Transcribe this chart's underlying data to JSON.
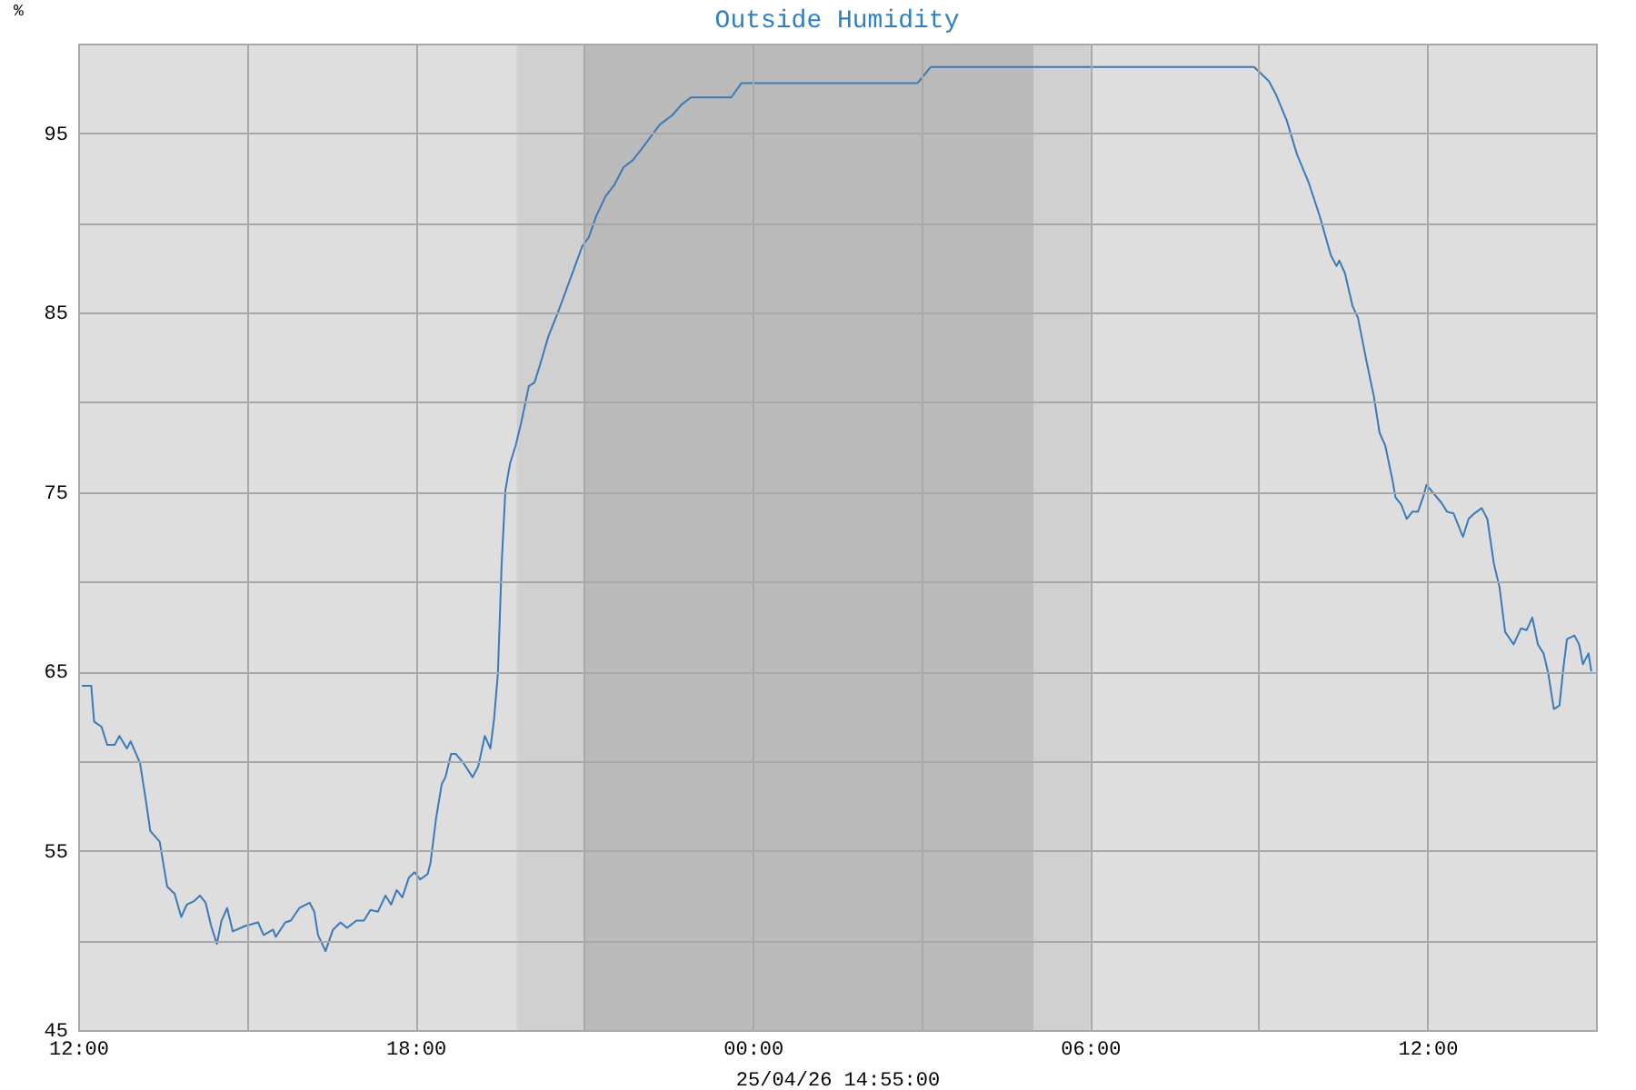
{
  "chart_data": {
    "type": "line",
    "title": "Outside Humidity",
    "xlabel": "25/04/26 14:55:00",
    "ylabel": "%",
    "x": [
      "--04-25T12:04",
      "--04-25T12:14",
      "--04-25T12:17",
      "--04-25T12:25",
      "--04-25T12:31",
      "--04-25T12:39",
      "--04-25T12:44",
      "--04-25T12:52",
      "--04-25T12:56",
      "--04-25T13:06",
      "--04-25T13:12",
      "--04-25T13:17",
      "--04-25T13:27",
      "--04-25T13:35",
      "--04-25T13:43",
      "--04-25T13:50",
      "--04-25T13:56",
      "--04-25T14:04",
      "--04-25T14:10",
      "--04-25T14:16",
      "--04-25T14:22",
      "--04-25T14:28",
      "--04-25T14:33",
      "--04-25T14:39",
      "--04-25T14:45",
      "--04-25T14:58",
      "--04-25T15:12",
      "--04-25T15:18",
      "--04-25T15:28",
      "--04-25T15:31",
      "--04-25T15:41",
      "--04-25T15:47",
      "--04-25T15:56",
      "--04-25T16:07",
      "--04-25T16:12",
      "--04-25T16:16",
      "--04-25T16:24",
      "--04-25T16:32",
      "--04-25T16:40",
      "--04-25T16:47",
      "--04-25T16:57",
      "--04-25T17:05",
      "--04-25T17:12",
      "--04-25T17:20",
      "--04-25T17:28",
      "--04-25T17:34",
      "--04-25T17:40",
      "--04-25T17:46",
      "--04-25T17:53",
      "--04-25T17:59",
      "--04-25T18:05",
      "--04-25T18:13",
      "--04-25T18:16",
      "--04-25T18:22",
      "--04-25T18:28",
      "--04-25T18:32",
      "--04-25T18:38",
      "--04-25T18:43",
      "--04-25T18:51",
      "--04-25T19:01",
      "--04-25T19:07",
      "--04-25T19:14",
      "--04-25T19:20",
      "--04-25T19:24",
      "--04-25T19:28",
      "--04-25T19:32",
      "--04-25T19:36",
      "--04-25T19:41",
      "--04-25T19:47",
      "--04-25T19:53",
      "--04-25T20:01",
      "--04-25T20:07",
      "--04-25T20:13",
      "--04-25T20:22",
      "--04-25T20:32",
      "--04-25T20:44",
      "--04-25T20:58",
      "--04-25T21:05",
      "--04-25T21:13",
      "--04-25T21:23",
      "--04-25T21:32",
      "--04-25T21:42",
      "--04-25T21:52",
      "--04-25T22:01",
      "--04-25T22:11",
      "--04-25T22:21",
      "--04-25T22:34",
      "--04-25T22:44",
      "--04-25T22:54",
      "--04-25T23:37",
      "--04-25T23:48",
      "--04-26T02:56",
      "--04-26T03:10",
      "--04-26T08:55",
      "--04-26T09:03",
      "--04-26T09:11",
      "--04-26T09:19",
      "--04-26T09:30",
      "--04-26T09:41",
      "--04-26T09:53",
      "--04-26T10:05",
      "--04-26T10:17",
      "--04-26T10:23",
      "--04-26T10:26",
      "--04-26T10:32",
      "--04-26T10:40",
      "--04-26T10:46",
      "--04-26T10:55",
      "--04-26T11:03",
      "--04-26T11:09",
      "--04-26T11:15",
      "--04-26T11:23",
      "--04-26T11:26",
      "--04-26T11:32",
      "--04-26T11:38",
      "--04-26T11:44",
      "--04-26T11:50",
      "--04-26T11:56",
      "--04-26T11:59",
      "--04-26T12:07",
      "--04-26T12:15",
      "--04-26T12:21",
      "--04-26T12:28",
      "--04-26T12:38",
      "--04-26T12:44",
      "--04-26T12:50",
      "--04-26T12:58",
      "--04-26T13:04",
      "--04-26T13:11",
      "--04-26T13:17",
      "--04-26T13:23",
      "--04-26T13:32",
      "--04-26T13:40",
      "--04-26T13:46",
      "--04-26T13:52",
      "--04-26T13:58",
      "--04-26T14:04",
      "--04-26T14:09",
      "--04-26T14:15",
      "--04-26T14:21",
      "--04-26T14:25",
      "--04-26T14:29",
      "--04-26T14:37",
      "--04-26T14:42",
      "--04-26T14:46",
      "--04-26T14:52",
      "--04-26T14:55"
    ],
    "series": [
      {
        "color": "#3a7ab8",
        "values": [
          64.2,
          64.2,
          62.2,
          61.9,
          60.9,
          60.9,
          61.4,
          60.7,
          61.1,
          59.9,
          57.9,
          56.1,
          55.5,
          53.0,
          52.6,
          51.3,
          52.0,
          52.2,
          52.5,
          52.1,
          50.8,
          49.8,
          51.1,
          51.8,
          50.5,
          50.8,
          51.0,
          50.3,
          50.6,
          50.2,
          51.0,
          51.1,
          51.8,
          52.1,
          51.6,
          50.3,
          49.4,
          50.6,
          51.0,
          50.7,
          51.1,
          51.1,
          51.7,
          51.6,
          52.5,
          52.0,
          52.8,
          52.4,
          53.5,
          53.8,
          53.4,
          53.7,
          54.3,
          56.8,
          58.7,
          59.1,
          60.4,
          60.4,
          59.9,
          59.1,
          59.7,
          61.4,
          60.7,
          62.4,
          64.9,
          71.0,
          75.1,
          76.6,
          77.6,
          78.9,
          80.9,
          81.1,
          82.1,
          83.7,
          85.0,
          86.7,
          88.7,
          89.2,
          90.4,
          91.5,
          92.1,
          93.1,
          93.5,
          94.1,
          94.8,
          95.5,
          96.0,
          96.6,
          97.0,
          97.0,
          97.8,
          97.8,
          98.7,
          98.7,
          98.3,
          97.9,
          97.1,
          95.7,
          93.8,
          92.3,
          90.4,
          88.2,
          87.6,
          87.9,
          87.2,
          85.4,
          84.7,
          82.3,
          80.3,
          78.3,
          77.6,
          75.6,
          74.7,
          74.3,
          73.5,
          73.9,
          73.9,
          74.8,
          75.4,
          74.9,
          74.4,
          73.9,
          73.8,
          72.5,
          73.5,
          73.8,
          74.1,
          73.5,
          71.0,
          69.7,
          67.2,
          66.5,
          67.4,
          67.3,
          68.0,
          66.5,
          66.0,
          64.9,
          62.9,
          63.1,
          65.1,
          66.8,
          67.0,
          66.5,
          65.4,
          66.0,
          65.0
        ]
      }
    ],
    "xlim": [
      "--04-25T12:00",
      "--04-26T15:00"
    ],
    "xticks": [
      {
        "value": "--04-25T12:00",
        "label": "12:00"
      },
      {
        "value": "--04-25T15:00",
        "label": null
      },
      {
        "value": "--04-25T18:00",
        "label": "18:00"
      },
      {
        "value": "--04-25T21:00",
        "label": null
      },
      {
        "value": "--04-26T00:00",
        "label": "00:00"
      },
      {
        "value": "--04-26T03:00",
        "label": null
      },
      {
        "value": "--04-26T06:00",
        "label": "06:00"
      },
      {
        "value": "--04-26T09:00",
        "label": null
      },
      {
        "value": "--04-26T12:00",
        "label": "12:00"
      },
      {
        "value": "--04-26T15:00",
        "label": null
      }
    ],
    "ylim": [
      45,
      100
    ],
    "yticks": [
      45,
      {
        "value": 50,
        "label": null
      },
      55,
      {
        "value": 60,
        "label": null
      },
      65,
      {
        "value": 70,
        "label": null
      },
      75,
      {
        "value": 80,
        "label": null
      },
      85,
      {
        "value": 90,
        "label": null
      },
      95,
      {
        "value": 100,
        "label": null
      }
    ],
    "bands": [
      {
        "axis": "x",
        "from": "--04-25T19:48",
        "to": "--04-25T21:00",
        "color": "#d0d0d0"
      },
      {
        "axis": "x",
        "from": "--04-25T21:00",
        "to": "--04-26T05:00",
        "color": "#bababa"
      },
      {
        "axis": "x",
        "from": "--04-26T05:00",
        "to": "--04-26T06:00",
        "color": "#d0d0d0"
      }
    ],
    "grid": true,
    "marker": "none",
    "line_style": "solid"
  }
}
